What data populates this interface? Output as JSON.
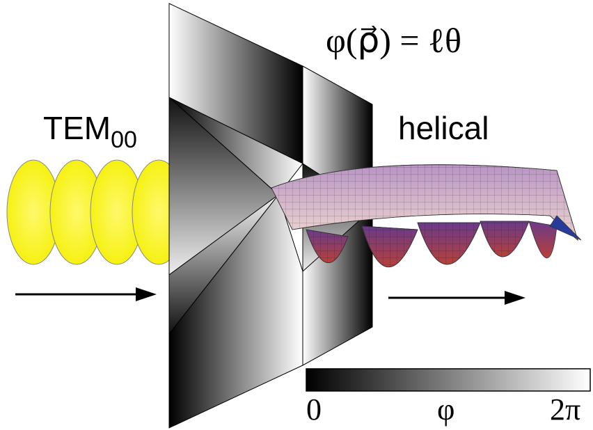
{
  "labels": {
    "equation": "φ(ρ⃗) = ℓθ",
    "input_beam": "TEM",
    "input_subscript": "00",
    "output_beam": "helical"
  },
  "colorbar": {
    "min_label": "0",
    "symbol": "φ",
    "max_label": "2π"
  }
}
